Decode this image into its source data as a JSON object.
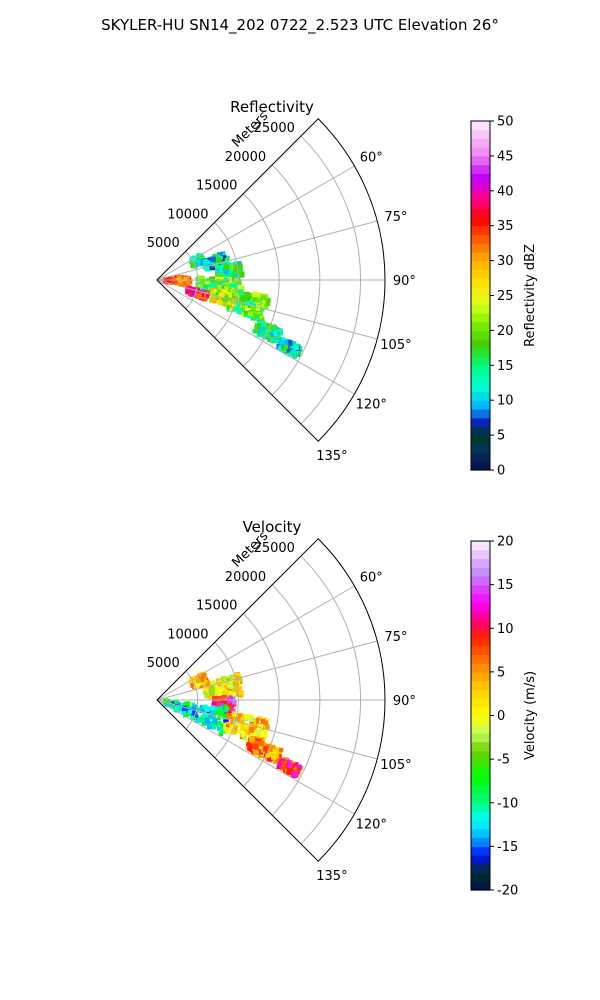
{
  "figure": {
    "title": "SKYLER-HU  SN14_202  0722_2.523 UTC Elevation 26°"
  },
  "chart_data": [
    {
      "type": "heatmap",
      "subtype": "polar-sector",
      "title": "Reflectivity",
      "range_label": "Meters",
      "range_ticks": [
        5000,
        10000,
        15000,
        20000,
        25000
      ],
      "range_max": 28000,
      "azimuth_range_deg": [
        45,
        135
      ],
      "azimuth_ticks_deg": [
        60,
        75,
        90,
        105,
        120,
        135
      ],
      "grid": true,
      "colorbar": {
        "label": "Reflectivity dBZ",
        "min": 0,
        "max": 50,
        "ticks": [
          0,
          5,
          10,
          15,
          20,
          25,
          30,
          35,
          40,
          45,
          50
        ]
      },
      "echo_regions": [
        {
          "az": [
            60,
            70
          ],
          "range": [
            4800,
            6200
          ],
          "level": 14
        },
        {
          "az": [
            68,
            78
          ],
          "range": [
            6000,
            9000
          ],
          "level": 12
        },
        {
          "az": [
            78,
            88
          ],
          "range": [
            7500,
            10500
          ],
          "level": 15
        },
        {
          "az": [
            88,
            104
          ],
          "range": [
            5000,
            10500
          ],
          "level": 19
        },
        {
          "az": [
            98,
            112
          ],
          "range": [
            9000,
            14000
          ],
          "level": 18
        },
        {
          "az": [
            112,
            118
          ],
          "range": [
            13500,
            16500
          ],
          "level": 14
        },
        {
          "az": [
            115,
            119
          ],
          "range": [
            17000,
            19500
          ],
          "level": 13
        },
        {
          "az": [
            84,
            100
          ],
          "range": [
            1000,
            4000
          ],
          "level": 34
        },
        {
          "az": [
            104,
            112
          ],
          "range": [
            4000,
            6500
          ],
          "level": 38
        },
        {
          "az": [
            100,
            110
          ],
          "range": [
            7000,
            10000
          ],
          "level": 24
        }
      ]
    },
    {
      "type": "heatmap",
      "subtype": "polar-sector",
      "title": "Velocity",
      "range_label": "Meters",
      "range_ticks": [
        5000,
        10000,
        15000,
        20000,
        25000
      ],
      "range_max": 28000,
      "azimuth_range_deg": [
        45,
        135
      ],
      "azimuth_ticks_deg": [
        60,
        75,
        90,
        105,
        120,
        135
      ],
      "grid": true,
      "colorbar": {
        "label": "Velocity (m/s)",
        "min": -20,
        "max": 20,
        "ticks": [
          -20,
          -15,
          -10,
          -5,
          0,
          5,
          10,
          15,
          20
        ]
      },
      "echo_regions": [
        {
          "az": [
            60,
            72
          ],
          "range": [
            4800,
            6500
          ],
          "level": 3
        },
        {
          "az": [
            72,
            88
          ],
          "range": [
            6000,
            10500
          ],
          "level": 1
        },
        {
          "az": [
            88,
            100
          ],
          "range": [
            7000,
            9500
          ],
          "level": 12
        },
        {
          "az": [
            96,
            118
          ],
          "range": [
            1000,
            9000
          ],
          "level": -11
        },
        {
          "az": [
            100,
            114
          ],
          "range": [
            9000,
            14000
          ],
          "level": 2
        },
        {
          "az": [
            112,
            118
          ],
          "range": [
            12500,
            16500
          ],
          "level": 6
        },
        {
          "az": [
            115,
            119
          ],
          "range": [
            17000,
            19500
          ],
          "level": 9
        }
      ]
    }
  ],
  "colors": {
    "axis": "#000000",
    "grid": "#b0b0b0"
  }
}
